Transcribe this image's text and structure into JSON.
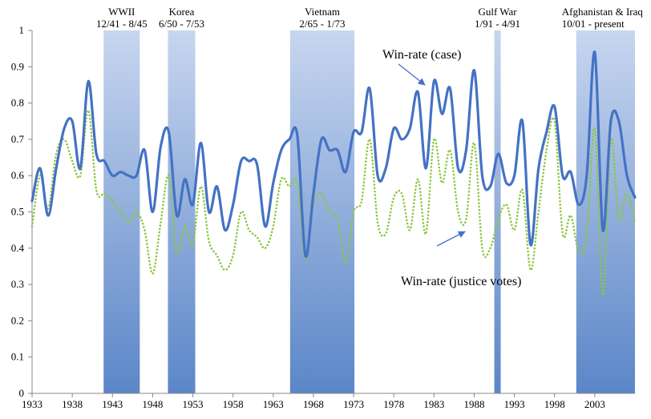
{
  "chart_data": {
    "type": "line",
    "title": "",
    "xlabel": "",
    "ylabel": "",
    "xlim": [
      1933,
      2008
    ],
    "ylim": [
      0,
      1
    ],
    "grid": false,
    "x_ticks": [
      1933,
      1938,
      1943,
      1948,
      1953,
      1958,
      1963,
      1968,
      1973,
      1978,
      1983,
      1988,
      1993,
      1998,
      2003
    ],
    "y_ticks": [
      0,
      0.1,
      0.2,
      0.3,
      0.4,
      0.5,
      0.6,
      0.7,
      0.8,
      0.9,
      1
    ],
    "shaded_periods": [
      {
        "label": "WWII",
        "dates": "12/41 -  8/45",
        "start": 1941.9,
        "end": 1946.4
      },
      {
        "label": "Korea",
        "dates": "6/50 - 7/53",
        "start": 1949.9,
        "end": 1953.3
      },
      {
        "label": "Vietnam",
        "dates": "2/65 - 1/73",
        "start": 1965.1,
        "end": 1973.1
      },
      {
        "label": "Gulf War",
        "dates": "1/91 - 4/91",
        "start": 1990.5,
        "end": 1991.3
      },
      {
        "label": "Afghanistan & Iraq",
        "dates": "10/01 - present",
        "start": 2000.7,
        "end": 2008
      }
    ],
    "series": [
      {
        "name": "Win-rate (case)",
        "color": "#4472c4",
        "style": "solid",
        "x": [
          1933,
          1934,
          1935,
          1936,
          1937,
          1938,
          1939,
          1940,
          1941,
          1942,
          1943,
          1944,
          1945,
          1946,
          1947,
          1948,
          1949,
          1950,
          1951,
          1952,
          1953,
          1954,
          1955,
          1956,
          1957,
          1958,
          1959,
          1960,
          1961,
          1962,
          1963,
          1964,
          1965,
          1966,
          1967,
          1968,
          1969,
          1970,
          1971,
          1972,
          1973,
          1974,
          1975,
          1976,
          1977,
          1978,
          1979,
          1980,
          1981,
          1982,
          1983,
          1984,
          1985,
          1986,
          1987,
          1988,
          1989,
          1990,
          1991,
          1992,
          1993,
          1994,
          1995,
          1996,
          1997,
          1998,
          1999,
          2000,
          2001,
          2002,
          2003,
          2004,
          2005,
          2006,
          2007,
          2008
        ],
        "y": [
          0.53,
          0.62,
          0.49,
          0.62,
          0.73,
          0.75,
          0.62,
          0.86,
          0.66,
          0.64,
          0.6,
          0.61,
          0.6,
          0.6,
          0.67,
          0.5,
          0.68,
          0.72,
          0.49,
          0.59,
          0.52,
          0.69,
          0.5,
          0.57,
          0.45,
          0.52,
          0.64,
          0.64,
          0.63,
          0.46,
          0.58,
          0.67,
          0.7,
          0.71,
          0.38,
          0.55,
          0.7,
          0.67,
          0.67,
          0.61,
          0.72,
          0.72,
          0.84,
          0.6,
          0.62,
          0.73,
          0.7,
          0.73,
          0.83,
          0.62,
          0.86,
          0.77,
          0.84,
          0.62,
          0.67,
          0.89,
          0.6,
          0.57,
          0.66,
          0.58,
          0.6,
          0.75,
          0.41,
          0.62,
          0.72,
          0.79,
          0.6,
          0.61,
          0.52,
          0.6,
          0.94,
          0.45,
          0.75,
          0.75,
          0.6,
          0.54
        ]
      },
      {
        "name": "Win-rate (justice votes)",
        "color": "#8cc63f",
        "style": "dotted",
        "x": [
          1933,
          1934,
          1935,
          1936,
          1937,
          1938,
          1939,
          1940,
          1941,
          1942,
          1943,
          1944,
          1945,
          1946,
          1947,
          1948,
          1949,
          1950,
          1951,
          1952,
          1953,
          1954,
          1955,
          1956,
          1957,
          1958,
          1959,
          1960,
          1961,
          1962,
          1963,
          1964,
          1965,
          1966,
          1967,
          1968,
          1969,
          1970,
          1971,
          1972,
          1973,
          1974,
          1975,
          1976,
          1977,
          1978,
          1979,
          1980,
          1981,
          1982,
          1983,
          1984,
          1985,
          1986,
          1987,
          1988,
          1989,
          1990,
          1991,
          1992,
          1993,
          1994,
          1995,
          1996,
          1997,
          1998,
          1999,
          2000,
          2001,
          2002,
          2003,
          2004,
          2005,
          2006,
          2007,
          2008
        ],
        "y": [
          0.46,
          0.6,
          0.51,
          0.66,
          0.7,
          0.64,
          0.6,
          0.78,
          0.56,
          0.55,
          0.53,
          0.5,
          0.47,
          0.5,
          0.45,
          0.33,
          0.47,
          0.6,
          0.39,
          0.46,
          0.41,
          0.57,
          0.42,
          0.38,
          0.34,
          0.38,
          0.5,
          0.45,
          0.43,
          0.4,
          0.46,
          0.59,
          0.57,
          0.58,
          0.37,
          0.52,
          0.55,
          0.5,
          0.48,
          0.36,
          0.5,
          0.53,
          0.7,
          0.47,
          0.44,
          0.54,
          0.55,
          0.45,
          0.59,
          0.44,
          0.7,
          0.58,
          0.67,
          0.5,
          0.48,
          0.69,
          0.4,
          0.4,
          0.48,
          0.52,
          0.45,
          0.56,
          0.34,
          0.5,
          0.67,
          0.75,
          0.44,
          0.49,
          0.39,
          0.43,
          0.73,
          0.27,
          0.7,
          0.48,
          0.55,
          0.47
        ]
      }
    ],
    "annotations": [
      {
        "text": "Win-rate (case)",
        "points_to": "Win-rate (case)"
      },
      {
        "text": "Win-rate (justice votes)",
        "points_to": "Win-rate (justice votes)"
      }
    ]
  }
}
